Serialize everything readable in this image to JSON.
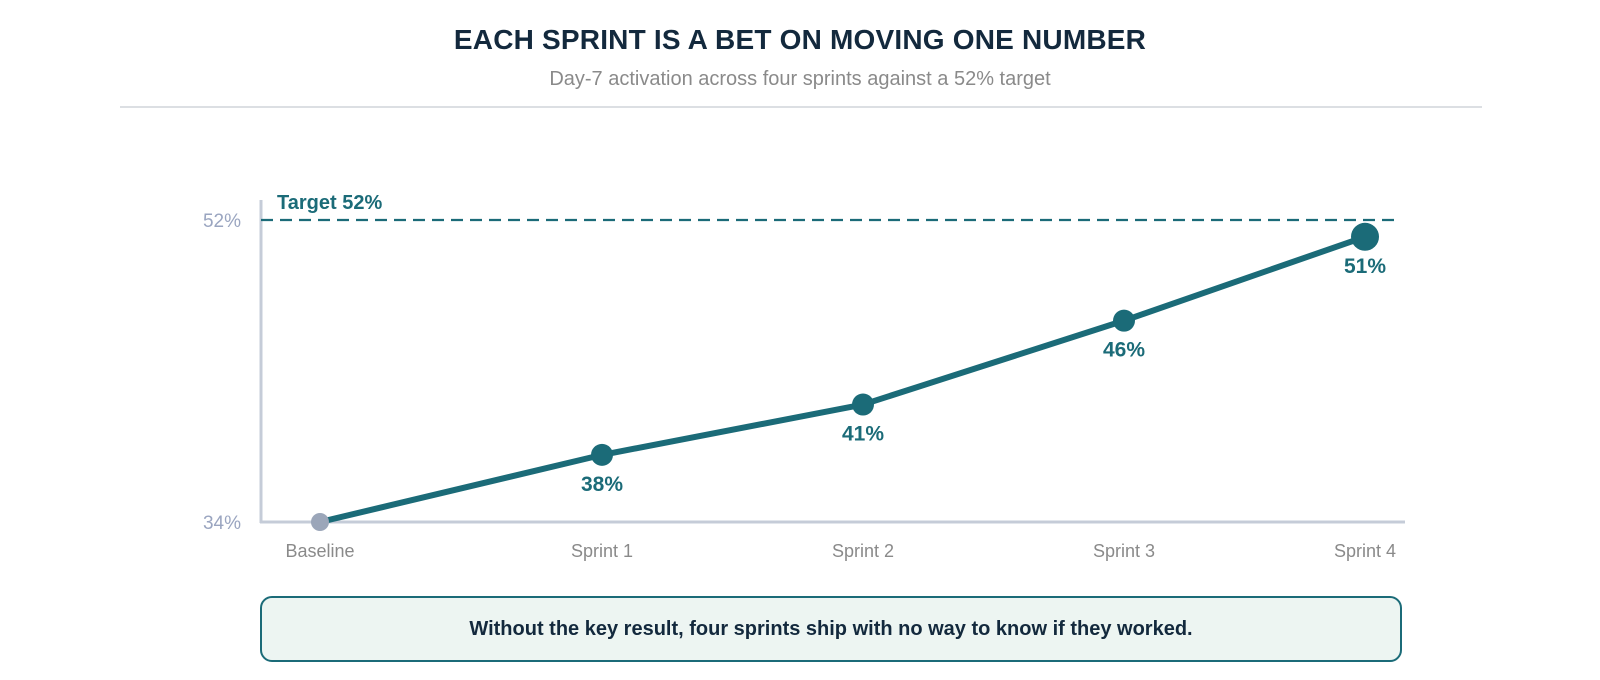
{
  "header": {
    "title": "EACH SPRINT IS A BET ON MOVING ONE NUMBER",
    "subtitle": "Day-7 activation across four sprints against a 52% target"
  },
  "chart_data": {
    "type": "line",
    "title": "",
    "xlabel": "",
    "ylabel": "",
    "categories": [
      "Baseline",
      "Sprint 1",
      "Sprint 2",
      "Sprint 3",
      "Sprint 4"
    ],
    "series": [
      {
        "values": [
          34,
          38,
          41,
          46,
          51
        ],
        "data_labels": [
          "",
          "38%",
          "41%",
          "46%",
          "51%"
        ]
      }
    ],
    "ylim": [
      34,
      52
    ],
    "y_ticks": [
      {
        "value": 34,
        "label": "34%"
      },
      {
        "value": 52,
        "label": "52%"
      }
    ],
    "target": {
      "value": 52,
      "label": "Target 52%"
    },
    "grid": false,
    "colors": {
      "line": "#1b6b78",
      "baseline_point": "#9ba6b9",
      "axis": "#c5ccd8",
      "tick_label": "#9aa5c0",
      "category_label": "#8a8a8a"
    }
  },
  "callout": {
    "text": "Without the key result, four sprints ship with no way to know if they worked."
  }
}
